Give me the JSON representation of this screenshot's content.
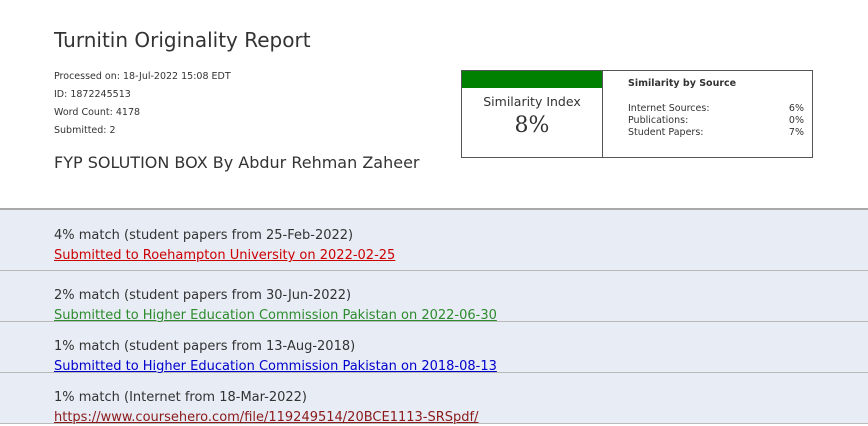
{
  "report": {
    "title": "Turnitin Originality Report",
    "processed_on": "Processed on: 18-Jul-2022 15:08 EDT",
    "id": "ID: 1872245513",
    "word_count": "Word Count: 4178",
    "submitted": "Submitted: 2",
    "document_title": "FYP SOLUTION BOX By Abdur Rehman Zaheer"
  },
  "similarity": {
    "index_label": "Similarity Index",
    "index_value": "8%",
    "index_bar_color": "#008000",
    "by_source_title": "Similarity by Source",
    "sources": [
      {
        "label": "Internet Sources:",
        "value": "6%"
      },
      {
        "label": "Publications:",
        "value": "0%"
      },
      {
        "label": "Student Papers:",
        "value": "7%"
      }
    ]
  },
  "matches": [
    {
      "text": "4% match (student papers from 25-Feb-2022)",
      "link": "Submitted to Roehampton University on 2022-02-25",
      "color": "#cc0000"
    },
    {
      "text": "2% match (student papers from 30-Jun-2022)",
      "link": "Submitted to Higher Education Commission Pakistan on 2022-06-30",
      "color": "#2e8b2e"
    },
    {
      "text": "1% match (student papers from 13-Aug-2018)",
      "link": "Submitted to Higher Education Commission Pakistan on 2018-08-13",
      "color": "#0000cc"
    },
    {
      "text": "1% match (Internet from 18-Mar-2022)",
      "link": "https://www.coursehero.com/file/119249514/20BCE1113-SRSpdf/",
      "color": "#8b1a1a"
    }
  ]
}
